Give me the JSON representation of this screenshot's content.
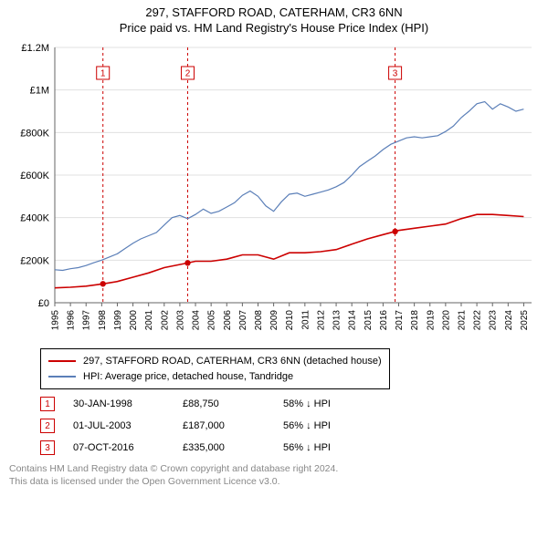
{
  "title": {
    "line1": "297, STAFFORD ROAD, CATERHAM, CR3 6NN",
    "line2": "Price paid vs. HM Land Registry's House Price Index (HPI)"
  },
  "chart": {
    "type": "line",
    "background_color": "#ffffff",
    "grid_color": "#e0e0e0",
    "axis_color": "#666666",
    "x": {
      "min": 1995,
      "max": 2025.5,
      "ticks": [
        1995,
        1996,
        1997,
        1998,
        1999,
        2000,
        2001,
        2002,
        2003,
        2004,
        2005,
        2006,
        2007,
        2008,
        2009,
        2010,
        2011,
        2012,
        2013,
        2014,
        2015,
        2016,
        2017,
        2018,
        2019,
        2020,
        2021,
        2022,
        2023,
        2024,
        2025
      ],
      "tick_fontsize": 10,
      "rotate": -90
    },
    "y": {
      "min": 0,
      "max": 1200000,
      "ticks": [
        0,
        200000,
        400000,
        600000,
        800000,
        1000000,
        1200000
      ],
      "tick_labels": [
        "£0",
        "£200K",
        "£400K",
        "£600K",
        "£800K",
        "£1M",
        "£1.2M"
      ],
      "tick_fontsize": 11
    },
    "series": [
      {
        "name": "price_paid",
        "label": "297, STAFFORD ROAD, CATERHAM, CR3 6NN (detached house)",
        "color": "#cc0000",
        "line_width": 1.6,
        "points": [
          [
            1995.0,
            70000
          ],
          [
            1996.0,
            73000
          ],
          [
            1997.0,
            78000
          ],
          [
            1998.08,
            88750
          ],
          [
            1999.0,
            100000
          ],
          [
            2000.0,
            120000
          ],
          [
            2001.0,
            140000
          ],
          [
            2002.0,
            165000
          ],
          [
            2003.5,
            187000
          ],
          [
            2004.0,
            195000
          ],
          [
            2005.0,
            195000
          ],
          [
            2006.0,
            205000
          ],
          [
            2007.0,
            225000
          ],
          [
            2008.0,
            225000
          ],
          [
            2009.0,
            205000
          ],
          [
            2010.0,
            235000
          ],
          [
            2011.0,
            235000
          ],
          [
            2012.0,
            240000
          ],
          [
            2013.0,
            250000
          ],
          [
            2014.0,
            275000
          ],
          [
            2015.0,
            300000
          ],
          [
            2016.0,
            320000
          ],
          [
            2016.77,
            335000
          ],
          [
            2017.0,
            340000
          ],
          [
            2018.0,
            350000
          ],
          [
            2019.0,
            360000
          ],
          [
            2020.0,
            370000
          ],
          [
            2021.0,
            395000
          ],
          [
            2022.0,
            415000
          ],
          [
            2023.0,
            415000
          ],
          [
            2024.0,
            410000
          ],
          [
            2025.0,
            405000
          ]
        ]
      },
      {
        "name": "hpi",
        "label": "HPI: Average price, detached house, Tandridge",
        "color": "#5b7fb8",
        "line_width": 1.2,
        "points": [
          [
            1995.0,
            155000
          ],
          [
            1995.5,
            152000
          ],
          [
            1996.0,
            160000
          ],
          [
            1996.5,
            165000
          ],
          [
            1997.0,
            175000
          ],
          [
            1997.5,
            188000
          ],
          [
            1998.0,
            200000
          ],
          [
            1998.5,
            215000
          ],
          [
            1999.0,
            230000
          ],
          [
            1999.5,
            255000
          ],
          [
            2000.0,
            280000
          ],
          [
            2000.5,
            300000
          ],
          [
            2001.0,
            315000
          ],
          [
            2001.5,
            330000
          ],
          [
            2002.0,
            365000
          ],
          [
            2002.5,
            400000
          ],
          [
            2003.0,
            410000
          ],
          [
            2003.5,
            395000
          ],
          [
            2004.0,
            415000
          ],
          [
            2004.5,
            440000
          ],
          [
            2005.0,
            420000
          ],
          [
            2005.5,
            430000
          ],
          [
            2006.0,
            450000
          ],
          [
            2006.5,
            470000
          ],
          [
            2007.0,
            505000
          ],
          [
            2007.5,
            525000
          ],
          [
            2008.0,
            500000
          ],
          [
            2008.5,
            455000
          ],
          [
            2009.0,
            430000
          ],
          [
            2009.5,
            475000
          ],
          [
            2010.0,
            510000
          ],
          [
            2010.5,
            515000
          ],
          [
            2011.0,
            500000
          ],
          [
            2011.5,
            510000
          ],
          [
            2012.0,
            520000
          ],
          [
            2012.5,
            530000
          ],
          [
            2013.0,
            545000
          ],
          [
            2013.5,
            565000
          ],
          [
            2014.0,
            600000
          ],
          [
            2014.5,
            640000
          ],
          [
            2015.0,
            665000
          ],
          [
            2015.5,
            690000
          ],
          [
            2016.0,
            720000
          ],
          [
            2016.5,
            745000
          ],
          [
            2017.0,
            760000
          ],
          [
            2017.5,
            775000
          ],
          [
            2018.0,
            780000
          ],
          [
            2018.5,
            775000
          ],
          [
            2019.0,
            780000
          ],
          [
            2019.5,
            785000
          ],
          [
            2020.0,
            805000
          ],
          [
            2020.5,
            830000
          ],
          [
            2021.0,
            870000
          ],
          [
            2021.5,
            900000
          ],
          [
            2022.0,
            935000
          ],
          [
            2022.5,
            945000
          ],
          [
            2023.0,
            910000
          ],
          [
            2023.5,
            935000
          ],
          [
            2024.0,
            920000
          ],
          [
            2024.5,
            900000
          ],
          [
            2025.0,
            910000
          ]
        ]
      }
    ],
    "markers": [
      {
        "n": 1,
        "x": 1998.08,
        "y": 88750,
        "box_y": 1080000
      },
      {
        "n": 2,
        "x": 2003.5,
        "y": 187000,
        "box_y": 1080000
      },
      {
        "n": 3,
        "x": 2016.77,
        "y": 335000,
        "box_y": 1080000
      }
    ],
    "marker_style": {
      "vline_color": "#cc0000",
      "vline_dash": "3,3",
      "vline_width": 1,
      "dot_color": "#cc0000",
      "dot_radius": 3.2,
      "box_border": "#cc0000",
      "box_fill": "#ffffff",
      "box_size": 14,
      "box_text_color": "#cc0000",
      "box_fontsize": 10
    }
  },
  "legend": {
    "items": [
      {
        "color": "#cc0000",
        "label": "297, STAFFORD ROAD, CATERHAM, CR3 6NN (detached house)"
      },
      {
        "color": "#5b7fb8",
        "label": "HPI: Average price, detached house, Tandridge"
      }
    ]
  },
  "events": [
    {
      "n": "1",
      "date": "30-JAN-1998",
      "price": "£88,750",
      "hpi": "58% ↓ HPI"
    },
    {
      "n": "2",
      "date": "01-JUL-2003",
      "price": "£187,000",
      "hpi": "56% ↓ HPI"
    },
    {
      "n": "3",
      "date": "07-OCT-2016",
      "price": "£335,000",
      "hpi": "56% ↓ HPI"
    }
  ],
  "event_box_color": "#cc0000",
  "footer": {
    "line1": "Contains HM Land Registry data © Crown copyright and database right 2024.",
    "line2": "This data is licensed under the Open Government Licence v3.0."
  }
}
